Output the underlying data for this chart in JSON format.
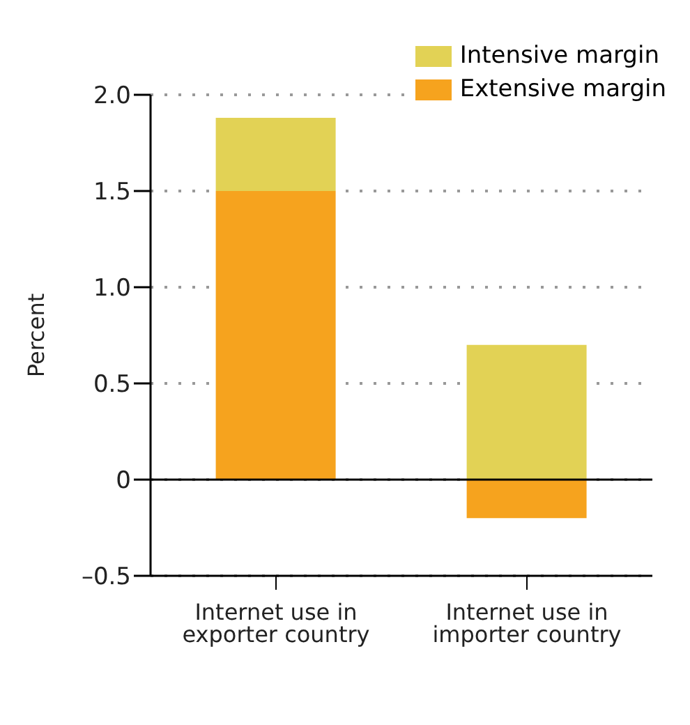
{
  "chart_data": {
    "type": "bar",
    "stacked": true,
    "ylabel": "Percent",
    "categories": [
      "Internet use in exporter country",
      "Internet use in importer country"
    ],
    "series": [
      {
        "name": "Extensive margin",
        "color": "#f6a31e",
        "values": [
          1.5,
          -0.2
        ]
      },
      {
        "name": "Intensive margin",
        "color": "#e2d255",
        "values": [
          0.38,
          0.7
        ]
      }
    ],
    "ylim": [
      -0.5,
      2.0
    ],
    "yticks": [
      {
        "value": -0.5,
        "label": "–0.5"
      },
      0,
      {
        "value": 0.5,
        "label": "0.5"
      },
      {
        "value": 1,
        "label": "1.0"
      },
      {
        "value": 1.5,
        "label": "1.5"
      },
      {
        "value": 2,
        "label": "2.0"
      }
    ],
    "ref_lines": [
      {
        "axis": "y",
        "value": 0,
        "color": "#000000"
      }
    ],
    "grid": "y",
    "legend": "top right"
  }
}
